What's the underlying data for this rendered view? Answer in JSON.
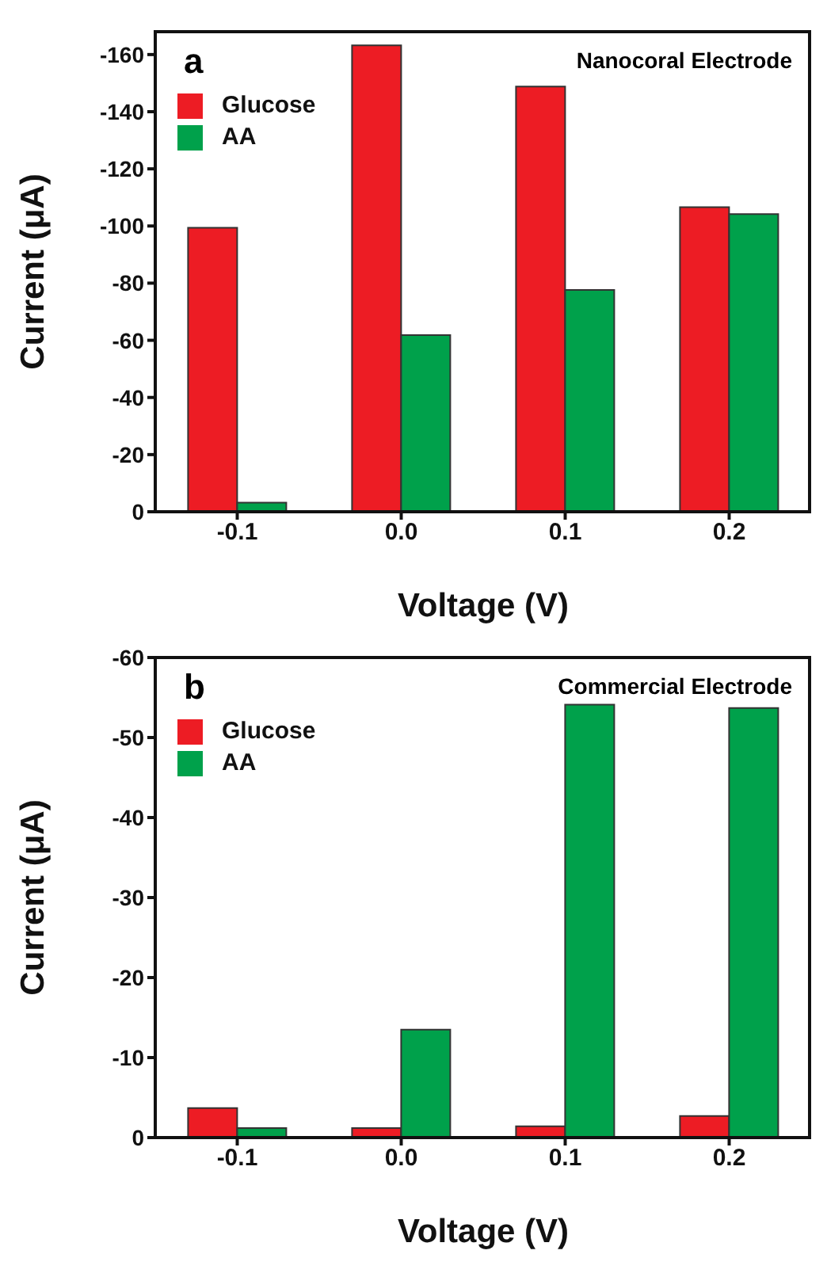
{
  "chart_data": [
    {
      "type": "bar",
      "annotations": [
        "a",
        "Nanocoral Electrode"
      ],
      "xlabel": "Voltage (V)",
      "ylabel": "Current (μA)",
      "categories": [
        "-0.1",
        "0.0",
        "0.1",
        "0.2"
      ],
      "series": [
        {
          "name": "Glucose",
          "color": "#ed1c24",
          "values": [
            -99.4,
            -163.2,
            -148.8,
            -106.6
          ]
        },
        {
          "name": "AA",
          "color": "#00a14b",
          "values": [
            -3.2,
            -61.8,
            -77.6,
            -104.2
          ]
        }
      ],
      "ylim": [
        0,
        -168
      ],
      "yticks": [
        0,
        -20,
        -40,
        -60,
        -80,
        -100,
        -120,
        -140,
        -160
      ],
      "grid": false,
      "legend": "top left"
    },
    {
      "type": "bar",
      "annotations": [
        "b",
        "Commercial Electrode"
      ],
      "xlabel": "Voltage (V)",
      "ylabel": "Current (μA)",
      "categories": [
        "-0.1",
        "0.0",
        "0.1",
        "0.2"
      ],
      "series": [
        {
          "name": "Glucose",
          "color": "#ed1c24",
          "values": [
            -3.7,
            -1.2,
            -1.4,
            -2.7
          ]
        },
        {
          "name": "AA",
          "color": "#00a14b",
          "values": [
            -1.2,
            -13.5,
            -54.1,
            -53.7
          ]
        }
      ],
      "ylim": [
        0,
        -60
      ],
      "yticks": [
        0,
        -10,
        -20,
        -30,
        -40,
        -50,
        -60
      ],
      "grid": false,
      "legend": "top left"
    }
  ]
}
